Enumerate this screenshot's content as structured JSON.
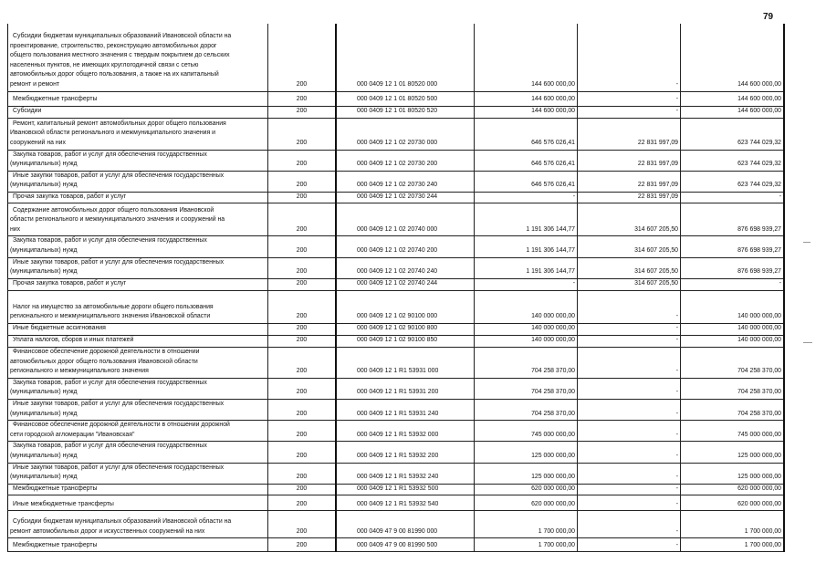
{
  "page_number": "79",
  "rows": [
    {
      "desc": "Субсидии бюджетам муниципальных образований Ивановской области на\nпроектирование, строительство, реконструкцию автомобильных дорог\nобщего пользования местного значения с твердым покрытием до сельских\nнаселенных пунктов, не имеющих круглогодичной связи с сетью\nавтомобильных дорог общего пользования, а также на их капитальный\nремонт и ремонт",
      "grbs": "200",
      "code": "000 0409 12 1 01 80520 000",
      "v1": "144 600 000,00",
      "v2": "-",
      "v3": "144 600 000,00"
    },
    {
      "desc": "Межбюджетные трансферты",
      "grbs": "200",
      "code": "000 0409 12 1 01 80520 500",
      "v1": "144 600 000,00",
      "v2": "-",
      "v3": "144 600 000,00"
    },
    {
      "desc": "Субсидии",
      "grbs": "200",
      "code": "000 0409 12 1 01 80520 520",
      "v1": "144 600 000,00",
      "v2": "-",
      "v3": "144 600 000,00"
    },
    {
      "desc": "Ремонт, капитальный ремонт автомобильных дорог общего пользования\nИвановской области регионального и межмуниципального значения и\nсооружений на них",
      "grbs": "200",
      "code": "000 0409 12 1 02 20730 000",
      "v1": "646 576 026,41",
      "v2": "22 831 997,09",
      "v3": "623 744 029,32"
    },
    {
      "desc": "Закупка товаров, работ и услуг для обеспечения государственных\n(муниципальных) нужд",
      "grbs": "200",
      "code": "000 0409 12 1 02 20730 200",
      "v1": "646 576 026,41",
      "v2": "22 831 997,09",
      "v3": "623 744 029,32"
    },
    {
      "desc": "Иные закупки товаров, работ и услуг для обеспечения государственных\n(муниципальных) нужд",
      "grbs": "200",
      "code": "000 0409 12 1 02 20730 240",
      "v1": "646 576 026,41",
      "v2": "22 831 997,09",
      "v3": "623 744 029,32"
    },
    {
      "desc": "Прочая закупка товаров, работ и услуг",
      "grbs": "200",
      "code": "000 0409 12 1 02 20730 244",
      "v1": "-",
      "v2": "22 831 997,09",
      "v3": "-"
    },
    {
      "desc": "Содержание автомобильных дорог общего пользования Ивановской\nобласти регионального и межмуниципального значения и сооружений на\nних",
      "grbs": "200",
      "code": "000 0409 12 1 02 20740 000",
      "v1": "1 191 306 144,77",
      "v2": "314 607 205,50",
      "v3": "876 698 939,27"
    },
    {
      "desc": "Закупка товаров, работ и услуг для обеспечения государственных\n(муниципальных) нужд",
      "grbs": "200",
      "code": "000 0409 12 1 02 20740 200",
      "v1": "1 191 306 144,77",
      "v2": "314 607 205,50",
      "v3": "876 698 939,27"
    },
    {
      "desc": "Иные закупки товаров, работ и услуг для обеспечения государственных\n(муниципальных) нужд",
      "grbs": "200",
      "code": "000 0409 12 1 02 20740 240",
      "v1": "1 191 306 144,77",
      "v2": "314 607 205,50",
      "v3": "876 698 939,27"
    },
    {
      "desc": "Прочая закупка товаров, работ и услуг",
      "grbs": "200",
      "code": "000 0409 12 1 02 20740 244",
      "v1": "-",
      "v2": "314 607 205,50",
      "v3": "-"
    },
    {
      "desc": "Налог на имущество за автомобильные дороги общего пользования\nрегионального и межмуниципального значения Ивановской области",
      "grbs": "200",
      "code": "000 0409 12 1 02 90100 000",
      "v1": "140 000 000,00",
      "v2": "-",
      "v3": "140 000 000,00"
    },
    {
      "desc": "Иные бюджетные ассигнования",
      "grbs": "200",
      "code": "000 0409 12 1 02 90100 800",
      "v1": "140 000 000,00",
      "v2": "-",
      "v3": "140 000 000,00"
    },
    {
      "desc": "Уплата налогов, сборов и иных платежей",
      "grbs": "200",
      "code": "000 0409 12 1 02 90100 850",
      "v1": "140 000 000,00",
      "v2": "-",
      "v3": "140 000 000,00"
    },
    {
      "desc": "Финансовое обеспечение дорожной деятельности в отношении\nавтомобильных дорог общего пользования Ивановской области\nрегионального и межмуниципального значения",
      "grbs": "200",
      "code": "000 0409 12 1 R1 53931 000",
      "v1": "704 258 370,00",
      "v2": "-",
      "v3": "704 258 370,00"
    },
    {
      "desc": "Закупка товаров, работ и услуг для обеспечения государственных\n(муниципальных) нужд",
      "grbs": "200",
      "code": "000 0409 12 1 R1 53931 200",
      "v1": "704 258 370,00",
      "v2": "-",
      "v3": "704 258 370,00"
    },
    {
      "desc": "Иные закупки товаров, работ и услуг для обеспечения государственных\n(муниципальных) нужд",
      "grbs": "200",
      "code": "000 0409 12 1 R1 53931 240",
      "v1": "704 258 370,00",
      "v2": "-",
      "v3": "704 258 370,00"
    },
    {
      "desc": "Финансовое обеспечение дорожной деятельности в отношении дорожной\nсети городской агломерации \"Ивановская\"",
      "grbs": "200",
      "code": "000 0409 12 1 R1 53932 000",
      "v1": "745 000 000,00",
      "v2": "-",
      "v3": "745 000 000,00"
    },
    {
      "desc": "Закупка товаров, работ и услуг для обеспечения государственных\n(муниципальных) нужд",
      "grbs": "200",
      "code": "000 0409 12 1 R1 53932 200",
      "v1": "125 000 000,00",
      "v2": "-",
      "v3": "125 000 000,00"
    },
    {
      "desc": "Иные закупки товаров, работ и услуг для обеспечения государственных\n(муниципальных) нужд",
      "grbs": "200",
      "code": "000 0409 12 1 R1 53932 240",
      "v1": "125 000 000,00",
      "v2": "-",
      "v3": "125 000 000,00"
    },
    {
      "desc": "Межбюджетные трансферты",
      "grbs": "200",
      "code": "000 0409 12 1 R1 53932 500",
      "v1": "620 000 000,00",
      "v2": "-",
      "v3": "620 000 000,00"
    },
    {
      "desc": "Иные межбюджетные трансферты",
      "grbs": "200",
      "code": "000 0409 12 1 R1 53932 540",
      "v1": "620 000 000,00",
      "v2": "-",
      "v3": "620 000 000,00"
    },
    {
      "desc": "Субсидии бюджетам муниципальных образований Ивановской области на\nремонт автомобильных дорог и искусственных сооружений на них",
      "grbs": "200",
      "code": "000 0409 47 9 00 81990 000",
      "v1": "1 700 000,00",
      "v2": "-",
      "v3": "1 700 000,00"
    },
    {
      "desc": "Межбюджетные трансферты",
      "grbs": "200",
      "code": "000 0409 47 9 00 81990 500",
      "v1": "1 700 000,00",
      "v2": "-",
      "v3": "1 700 000,00"
    }
  ]
}
